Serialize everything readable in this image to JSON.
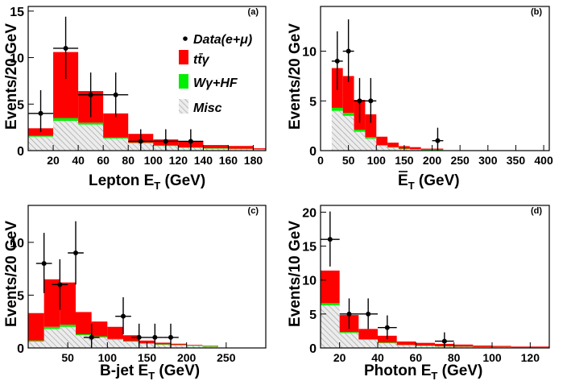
{
  "colors": {
    "ttg": "#ff0000",
    "wg": "#00ee00",
    "misc_fill": "#ececec",
    "misc_hatch": "#999999",
    "data": "#000000"
  },
  "legend": {
    "data": "Data(e+μ)",
    "ttg": "tt̄γ",
    "wg": "Wγ+HF",
    "misc": "Misc"
  },
  "chart_data": [
    {
      "id": "a",
      "type": "bar",
      "stacked": true,
      "panel_label": "(a)",
      "xlabel": "Lepton E_T  (GeV)",
      "ylabel": "Events/20 GeV",
      "xlim": [
        0,
        190
      ],
      "ylim": [
        0,
        15.5
      ],
      "xticks": [
        20,
        40,
        60,
        80,
        100,
        120,
        140,
        160,
        180
      ],
      "yticks": [
        0,
        5,
        10,
        15
      ],
      "bins": [
        [
          0,
          20
        ],
        [
          20,
          40
        ],
        [
          40,
          60
        ],
        [
          60,
          80
        ],
        [
          80,
          100
        ],
        [
          100,
          120
        ],
        [
          120,
          140
        ],
        [
          140,
          160
        ],
        [
          160,
          180
        ],
        [
          180,
          190
        ]
      ],
      "series": [
        {
          "name": "Misc",
          "values": [
            1.5,
            3.2,
            2.8,
            1.3,
            0.8,
            0.5,
            0.3,
            0.2,
            0.15,
            0.1
          ]
        },
        {
          "name": "Wγ+HF",
          "values": [
            0.1,
            0.3,
            0.2,
            0.1,
            0.05,
            0.05,
            0.05,
            0.05,
            0.05,
            0.05
          ]
        },
        {
          "name": "tt̄γ",
          "values": [
            0.8,
            7.1,
            3.4,
            2.6,
            0.95,
            0.65,
            0.65,
            0.35,
            0.3,
            0.1
          ]
        }
      ],
      "data_points": [
        {
          "x": 10,
          "y": 4,
          "xerr": 10,
          "yerr": [
            2,
            2.5
          ]
        },
        {
          "x": 30,
          "y": 11,
          "xerr": 10,
          "yerr": [
            3.3,
            3.4
          ]
        },
        {
          "x": 50,
          "y": 6,
          "xerr": 10,
          "yerr": [
            2.4,
            2.4
          ]
        },
        {
          "x": 70,
          "y": 6,
          "xerr": 10,
          "yerr": [
            2.4,
            2.4
          ]
        },
        {
          "x": 90,
          "y": 1,
          "xerr": 10,
          "yerr": [
            1,
            1.3
          ]
        },
        {
          "x": 110,
          "y": 1,
          "xerr": 10,
          "yerr": [
            1,
            1.3
          ]
        },
        {
          "x": 130,
          "y": 1,
          "xerr": 10,
          "yerr": [
            1,
            1.3
          ]
        }
      ]
    },
    {
      "id": "b",
      "type": "bar",
      "stacked": true,
      "panel_label": "(b)",
      "xlabel": "E_T (GeV)",
      "ylabel": "Events/20 GeV",
      "xlim": [
        0,
        410
      ],
      "ylim": [
        0,
        14.5
      ],
      "xticks": [
        0,
        50,
        100,
        150,
        200,
        250,
        300,
        350,
        400
      ],
      "yticks": [
        0,
        5,
        10
      ],
      "bins": [
        [
          20,
          40
        ],
        [
          40,
          60
        ],
        [
          60,
          80
        ],
        [
          80,
          100
        ],
        [
          100,
          120
        ],
        [
          120,
          140
        ],
        [
          140,
          160
        ],
        [
          160,
          180
        ],
        [
          180,
          200
        ],
        [
          200,
          220
        ]
      ],
      "series": [
        {
          "name": "Misc",
          "values": [
            4.0,
            3.5,
            1.9,
            1.2,
            0.5,
            0.3,
            0.15,
            0.1,
            0.05,
            0.05
          ]
        },
        {
          "name": "Wγ+HF",
          "values": [
            0.3,
            0.3,
            0.2,
            0.15,
            0.05,
            0.05,
            0.05,
            0.05,
            0.05,
            0.05
          ]
        },
        {
          "name": "tt̄γ",
          "values": [
            4.0,
            3.7,
            3.0,
            2.3,
            0.85,
            0.45,
            0.25,
            0.2,
            0.1,
            0.1
          ]
        }
      ],
      "data_points": [
        {
          "x": 30,
          "y": 9,
          "xerr": 10,
          "yerr": [
            2.9,
            3.0
          ]
        },
        {
          "x": 50,
          "y": 10,
          "xerr": 10,
          "yerr": [
            3.1,
            3.2
          ]
        },
        {
          "x": 70,
          "y": 5,
          "xerr": 10,
          "yerr": [
            2.2,
            2.3
          ]
        },
        {
          "x": 90,
          "y": 5,
          "xerr": 10,
          "yerr": [
            2.2,
            2.3
          ]
        },
        {
          "x": 210,
          "y": 1,
          "xerr": 10,
          "yerr": [
            1,
            1.3
          ]
        }
      ]
    },
    {
      "id": "c",
      "type": "bar",
      "stacked": true,
      "panel_label": "(c)",
      "xlabel": "B-jet E_T  (GeV)",
      "ylabel": "Events/20 GeV",
      "xlim": [
        0,
        300
      ],
      "ylim": [
        0,
        13.5
      ],
      "xticks": [
        50,
        100,
        150,
        200,
        250
      ],
      "yticks": [
        0,
        5,
        10
      ],
      "bins": [
        [
          0,
          20
        ],
        [
          20,
          40
        ],
        [
          40,
          60
        ],
        [
          60,
          80
        ],
        [
          80,
          100
        ],
        [
          100,
          120
        ],
        [
          120,
          140
        ],
        [
          140,
          160
        ],
        [
          160,
          180
        ],
        [
          180,
          200
        ],
        [
          200,
          220
        ],
        [
          220,
          240
        ]
      ],
      "series": [
        {
          "name": "Misc",
          "values": [
            0.6,
            1.8,
            2.0,
            1.2,
            1.0,
            0.8,
            0.6,
            0.4,
            0.3,
            0.25,
            0.2,
            0.1
          ]
        },
        {
          "name": "Wγ+HF",
          "values": [
            0.1,
            0.2,
            0.2,
            0.1,
            0.1,
            0.05,
            0.05,
            0.05,
            0.05,
            0.05,
            0.05,
            0.05
          ]
        },
        {
          "name": "tt̄γ",
          "values": [
            2.6,
            4.5,
            4.0,
            2.1,
            1.4,
            1.15,
            0.55,
            0.25,
            0.15,
            0.1,
            0.05,
            0.05
          ]
        }
      ],
      "data_points": [
        {
          "x": 20,
          "y": 8,
          "xerr": 10,
          "yerr": [
            2.8,
            2.9
          ]
        },
        {
          "x": 40,
          "y": 6,
          "xerr": 10,
          "yerr": [
            2.4,
            2.4
          ]
        },
        {
          "x": 60,
          "y": 9,
          "xerr": 10,
          "yerr": [
            3.0,
            3.0
          ]
        },
        {
          "x": 80,
          "y": 1,
          "xerr": 10,
          "yerr": [
            1,
            1.3
          ]
        },
        {
          "x": 120,
          "y": 3,
          "xerr": 10,
          "yerr": [
            1.7,
            1.8
          ]
        },
        {
          "x": 140,
          "y": 1,
          "xerr": 10,
          "yerr": [
            1,
            1.3
          ]
        },
        {
          "x": 160,
          "y": 1,
          "xerr": 10,
          "yerr": [
            1,
            1.3
          ]
        },
        {
          "x": 180,
          "y": 1,
          "xerr": 10,
          "yerr": [
            1,
            1.3
          ]
        }
      ]
    },
    {
      "id": "d",
      "type": "bar",
      "stacked": true,
      "panel_label": "(d)",
      "xlabel": "Photon E_T  (GeV)",
      "ylabel": "Events/10 GeV",
      "xlim": [
        10,
        130
      ],
      "ylim": [
        0,
        21
      ],
      "xticks": [
        20,
        40,
        60,
        80,
        100,
        120
      ],
      "yticks": [
        0,
        5,
        10,
        15,
        20
      ],
      "bins": [
        [
          10,
          20
        ],
        [
          20,
          30
        ],
        [
          30,
          40
        ],
        [
          40,
          50
        ],
        [
          50,
          60
        ],
        [
          60,
          70
        ],
        [
          70,
          80
        ],
        [
          80,
          90
        ],
        [
          90,
          100
        ],
        [
          100,
          110
        ],
        [
          110,
          120
        ],
        [
          120,
          130
        ]
      ],
      "series": [
        {
          "name": "Misc",
          "values": [
            6.3,
            2.2,
            1.2,
            0.7,
            0.4,
            0.3,
            0.2,
            0.15,
            0.1,
            0.1,
            0.05,
            0.05
          ]
        },
        {
          "name": "Wγ+HF",
          "values": [
            0.3,
            0.15,
            0.1,
            0.1,
            0.05,
            0.05,
            0.05,
            0.05,
            0.05,
            0.05,
            0.05,
            0.05
          ]
        },
        {
          "name": "tt̄γ",
          "values": [
            4.8,
            2.5,
            1.5,
            1.0,
            0.5,
            0.4,
            0.35,
            0.3,
            0.2,
            0.15,
            0.1,
            0.1
          ]
        }
      ],
      "data_points": [
        {
          "x": 15,
          "y": 16,
          "xerr": 5,
          "yerr": [
            4.0,
            4.1
          ]
        },
        {
          "x": 25,
          "y": 5,
          "xerr": 5,
          "yerr": [
            2.2,
            2.3
          ]
        },
        {
          "x": 35,
          "y": 5,
          "xerr": 5,
          "yerr": [
            2.2,
            2.3
          ]
        },
        {
          "x": 45,
          "y": 3,
          "xerr": 5,
          "yerr": [
            1.7,
            1.8
          ]
        },
        {
          "x": 75,
          "y": 1,
          "xerr": 5,
          "yerr": [
            1,
            1.3
          ]
        }
      ]
    }
  ]
}
